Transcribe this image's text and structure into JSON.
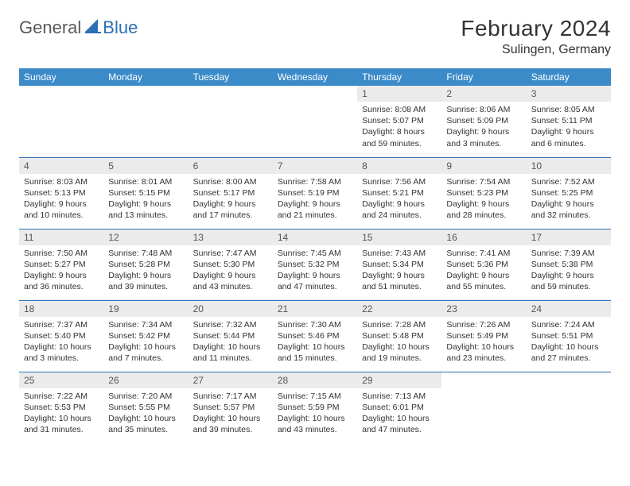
{
  "logo": {
    "text1": "General",
    "text2": "Blue",
    "shape_color": "#2d6fb4"
  },
  "title": "February 2024",
  "location": "Sulingen, Germany",
  "colors": {
    "header_bg": "#3b8bc9",
    "header_fg": "#ffffff",
    "row_divider": "#2d6fb4",
    "daynum_bg": "#ebebeb",
    "daynum_fg": "#555555",
    "text": "#333333"
  },
  "weekdays": [
    "Sunday",
    "Monday",
    "Tuesday",
    "Wednesday",
    "Thursday",
    "Friday",
    "Saturday"
  ],
  "weeks": [
    [
      {
        "n": "",
        "sr": "",
        "ss": "",
        "dl": ""
      },
      {
        "n": "",
        "sr": "",
        "ss": "",
        "dl": ""
      },
      {
        "n": "",
        "sr": "",
        "ss": "",
        "dl": ""
      },
      {
        "n": "",
        "sr": "",
        "ss": "",
        "dl": ""
      },
      {
        "n": "1",
        "sr": "Sunrise: 8:08 AM",
        "ss": "Sunset: 5:07 PM",
        "dl": "Daylight: 8 hours and 59 minutes."
      },
      {
        "n": "2",
        "sr": "Sunrise: 8:06 AM",
        "ss": "Sunset: 5:09 PM",
        "dl": "Daylight: 9 hours and 3 minutes."
      },
      {
        "n": "3",
        "sr": "Sunrise: 8:05 AM",
        "ss": "Sunset: 5:11 PM",
        "dl": "Daylight: 9 hours and 6 minutes."
      }
    ],
    [
      {
        "n": "4",
        "sr": "Sunrise: 8:03 AM",
        "ss": "Sunset: 5:13 PM",
        "dl": "Daylight: 9 hours and 10 minutes."
      },
      {
        "n": "5",
        "sr": "Sunrise: 8:01 AM",
        "ss": "Sunset: 5:15 PM",
        "dl": "Daylight: 9 hours and 13 minutes."
      },
      {
        "n": "6",
        "sr": "Sunrise: 8:00 AM",
        "ss": "Sunset: 5:17 PM",
        "dl": "Daylight: 9 hours and 17 minutes."
      },
      {
        "n": "7",
        "sr": "Sunrise: 7:58 AM",
        "ss": "Sunset: 5:19 PM",
        "dl": "Daylight: 9 hours and 21 minutes."
      },
      {
        "n": "8",
        "sr": "Sunrise: 7:56 AM",
        "ss": "Sunset: 5:21 PM",
        "dl": "Daylight: 9 hours and 24 minutes."
      },
      {
        "n": "9",
        "sr": "Sunrise: 7:54 AM",
        "ss": "Sunset: 5:23 PM",
        "dl": "Daylight: 9 hours and 28 minutes."
      },
      {
        "n": "10",
        "sr": "Sunrise: 7:52 AM",
        "ss": "Sunset: 5:25 PM",
        "dl": "Daylight: 9 hours and 32 minutes."
      }
    ],
    [
      {
        "n": "11",
        "sr": "Sunrise: 7:50 AM",
        "ss": "Sunset: 5:27 PM",
        "dl": "Daylight: 9 hours and 36 minutes."
      },
      {
        "n": "12",
        "sr": "Sunrise: 7:48 AM",
        "ss": "Sunset: 5:28 PM",
        "dl": "Daylight: 9 hours and 39 minutes."
      },
      {
        "n": "13",
        "sr": "Sunrise: 7:47 AM",
        "ss": "Sunset: 5:30 PM",
        "dl": "Daylight: 9 hours and 43 minutes."
      },
      {
        "n": "14",
        "sr": "Sunrise: 7:45 AM",
        "ss": "Sunset: 5:32 PM",
        "dl": "Daylight: 9 hours and 47 minutes."
      },
      {
        "n": "15",
        "sr": "Sunrise: 7:43 AM",
        "ss": "Sunset: 5:34 PM",
        "dl": "Daylight: 9 hours and 51 minutes."
      },
      {
        "n": "16",
        "sr": "Sunrise: 7:41 AM",
        "ss": "Sunset: 5:36 PM",
        "dl": "Daylight: 9 hours and 55 minutes."
      },
      {
        "n": "17",
        "sr": "Sunrise: 7:39 AM",
        "ss": "Sunset: 5:38 PM",
        "dl": "Daylight: 9 hours and 59 minutes."
      }
    ],
    [
      {
        "n": "18",
        "sr": "Sunrise: 7:37 AM",
        "ss": "Sunset: 5:40 PM",
        "dl": "Daylight: 10 hours and 3 minutes."
      },
      {
        "n": "19",
        "sr": "Sunrise: 7:34 AM",
        "ss": "Sunset: 5:42 PM",
        "dl": "Daylight: 10 hours and 7 minutes."
      },
      {
        "n": "20",
        "sr": "Sunrise: 7:32 AM",
        "ss": "Sunset: 5:44 PM",
        "dl": "Daylight: 10 hours and 11 minutes."
      },
      {
        "n": "21",
        "sr": "Sunrise: 7:30 AM",
        "ss": "Sunset: 5:46 PM",
        "dl": "Daylight: 10 hours and 15 minutes."
      },
      {
        "n": "22",
        "sr": "Sunrise: 7:28 AM",
        "ss": "Sunset: 5:48 PM",
        "dl": "Daylight: 10 hours and 19 minutes."
      },
      {
        "n": "23",
        "sr": "Sunrise: 7:26 AM",
        "ss": "Sunset: 5:49 PM",
        "dl": "Daylight: 10 hours and 23 minutes."
      },
      {
        "n": "24",
        "sr": "Sunrise: 7:24 AM",
        "ss": "Sunset: 5:51 PM",
        "dl": "Daylight: 10 hours and 27 minutes."
      }
    ],
    [
      {
        "n": "25",
        "sr": "Sunrise: 7:22 AM",
        "ss": "Sunset: 5:53 PM",
        "dl": "Daylight: 10 hours and 31 minutes."
      },
      {
        "n": "26",
        "sr": "Sunrise: 7:20 AM",
        "ss": "Sunset: 5:55 PM",
        "dl": "Daylight: 10 hours and 35 minutes."
      },
      {
        "n": "27",
        "sr": "Sunrise: 7:17 AM",
        "ss": "Sunset: 5:57 PM",
        "dl": "Daylight: 10 hours and 39 minutes."
      },
      {
        "n": "28",
        "sr": "Sunrise: 7:15 AM",
        "ss": "Sunset: 5:59 PM",
        "dl": "Daylight: 10 hours and 43 minutes."
      },
      {
        "n": "29",
        "sr": "Sunrise: 7:13 AM",
        "ss": "Sunset: 6:01 PM",
        "dl": "Daylight: 10 hours and 47 minutes."
      },
      {
        "n": "",
        "sr": "",
        "ss": "",
        "dl": ""
      },
      {
        "n": "",
        "sr": "",
        "ss": "",
        "dl": ""
      }
    ]
  ]
}
